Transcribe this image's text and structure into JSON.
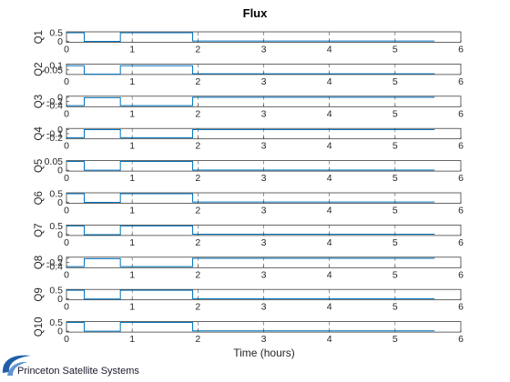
{
  "title": "Flux",
  "xlabel": "Time (hours)",
  "brand": "Princeton Satellite Systems",
  "colors": {
    "series": "#0072BD",
    "logo": "#1f5fa8"
  },
  "chart_data": [
    {
      "type": "line",
      "ylabel": "Q1",
      "xlim": [
        0,
        6
      ],
      "xticks": [
        0,
        1,
        2,
        3,
        4,
        5,
        6
      ],
      "yticks": [
        0,
        0.5
      ],
      "ylim": [
        -0.05,
        0.55
      ],
      "x": [
        0,
        0.27,
        0.27,
        0.82,
        0.82,
        1.92,
        1.92,
        5.6
      ],
      "y": [
        0.5,
        0.5,
        0,
        0,
        0.5,
        0.5,
        0.02,
        0.02
      ]
    },
    {
      "type": "line",
      "ylabel": "Q2",
      "xlim": [
        0,
        6
      ],
      "xticks": [
        0,
        1,
        2,
        3,
        4,
        5,
        6
      ],
      "yticks": [
        0.05,
        0.1
      ],
      "ylim": [
        -0.005,
        0.12
      ],
      "x": [
        0,
        0.27,
        0.27,
        0.82,
        0.82,
        1.92,
        1.92,
        5.6
      ],
      "y": [
        0.1,
        0.1,
        0,
        0,
        0.1,
        0.1,
        0.004,
        0.004
      ]
    },
    {
      "type": "line",
      "ylabel": "Q3",
      "xlim": [
        0,
        6
      ],
      "xticks": [
        0,
        1,
        2,
        3,
        4,
        5,
        6
      ],
      "yticks": [
        -0.4,
        -0.2,
        0
      ],
      "ylim": [
        -0.45,
        0.05
      ],
      "x": [
        0,
        0.27,
        0.27,
        0.82,
        0.82,
        1.92,
        1.92,
        5.6
      ],
      "y": [
        -0.4,
        -0.4,
        -0.02,
        -0.02,
        -0.4,
        -0.4,
        0,
        0
      ]
    },
    {
      "type": "line",
      "ylabel": "Q4",
      "xlim": [
        0,
        6
      ],
      "xticks": [
        0,
        1,
        2,
        3,
        4,
        5,
        6
      ],
      "yticks": [
        -0.2,
        -0.1,
        0
      ],
      "ylim": [
        -0.23,
        0.03
      ],
      "x": [
        0,
        0.27,
        0.27,
        0.82,
        0.82,
        1.92,
        1.92,
        5.6
      ],
      "y": [
        -0.2,
        -0.2,
        0,
        0,
        -0.2,
        -0.2,
        0,
        0
      ]
    },
    {
      "type": "line",
      "ylabel": "Q5",
      "xlim": [
        0,
        6
      ],
      "xticks": [
        0,
        1,
        2,
        3,
        4,
        5,
        6
      ],
      "yticks": [
        0,
        0.05
      ],
      "ylim": [
        -0.005,
        0.055
      ],
      "x": [
        0,
        0.27,
        0.27,
        0.82,
        0.82,
        1.92,
        1.92,
        5.6
      ],
      "y": [
        0.05,
        0.05,
        0,
        0,
        0.05,
        0.05,
        0.001,
        0.001
      ]
    },
    {
      "type": "line",
      "ylabel": "Q6",
      "xlim": [
        0,
        6
      ],
      "xticks": [
        0,
        1,
        2,
        3,
        4,
        5,
        6
      ],
      "yticks": [
        0,
        0.5
      ],
      "ylim": [
        -0.05,
        0.55
      ],
      "x": [
        0,
        0.27,
        0.27,
        0.82,
        0.82,
        1.92,
        1.92,
        5.6
      ],
      "y": [
        0.5,
        0.5,
        0,
        0,
        0.5,
        0.5,
        0.02,
        0.02
      ]
    },
    {
      "type": "line",
      "ylabel": "Q7",
      "xlim": [
        0,
        6
      ],
      "xticks": [
        0,
        1,
        2,
        3,
        4,
        5,
        6
      ],
      "yticks": [
        0,
        0.5
      ],
      "ylim": [
        -0.05,
        0.55
      ],
      "x": [
        0,
        0.27,
        0.27,
        0.82,
        0.82,
        1.92,
        1.92,
        5.6
      ],
      "y": [
        0.5,
        0.5,
        0,
        0,
        0.5,
        0.5,
        0.02,
        0.02
      ]
    },
    {
      "type": "line",
      "ylabel": "Q8",
      "xlim": [
        0,
        6
      ],
      "xticks": [
        0,
        1,
        2,
        3,
        4,
        5,
        6
      ],
      "yticks": [
        -0.4,
        -0.2,
        0
      ],
      "ylim": [
        -0.45,
        0.05
      ],
      "x": [
        0,
        0.27,
        0.27,
        0.82,
        0.82,
        1.92,
        1.92,
        5.6
      ],
      "y": [
        -0.4,
        -0.4,
        -0.02,
        -0.02,
        -0.4,
        -0.4,
        0,
        0
      ]
    },
    {
      "type": "line",
      "ylabel": "Q9",
      "xlim": [
        0,
        6
      ],
      "xticks": [
        0,
        1,
        2,
        3,
        4,
        5,
        6
      ],
      "yticks": [
        0,
        0.5
      ],
      "ylim": [
        -0.05,
        0.55
      ],
      "x": [
        0,
        0.27,
        0.27,
        0.82,
        0.82,
        1.92,
        1.92,
        5.6
      ],
      "y": [
        0.5,
        0.5,
        0,
        0,
        0.5,
        0.5,
        0.02,
        0.02
      ]
    },
    {
      "type": "line",
      "ylabel": "Q10",
      "xlim": [
        0,
        6
      ],
      "xticks": [
        0,
        1,
        2,
        3,
        4,
        5,
        6
      ],
      "yticks": [
        0,
        0.5
      ],
      "ylim": [
        -0.05,
        0.55
      ],
      "x": [
        0,
        0.27,
        0.27,
        0.82,
        0.82,
        1.92,
        1.92,
        5.6
      ],
      "y": [
        0.5,
        0.5,
        0,
        0,
        0.5,
        0.5,
        0.02,
        0.02
      ]
    }
  ]
}
